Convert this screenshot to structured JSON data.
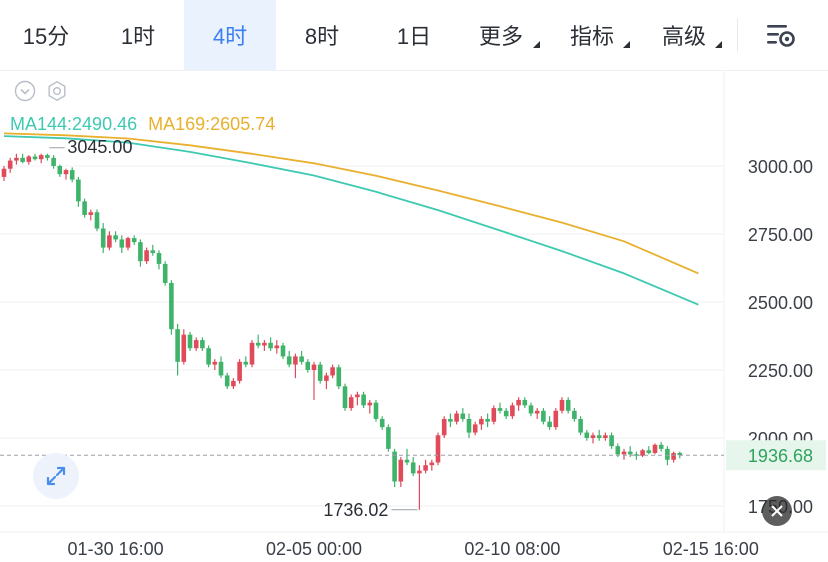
{
  "toolbar": {
    "tabs": [
      {
        "label": "15分",
        "caret": false,
        "active": false
      },
      {
        "label": "1时",
        "caret": false,
        "active": false
      },
      {
        "label": "4时",
        "caret": false,
        "active": true
      },
      {
        "label": "8时",
        "caret": false,
        "active": false
      },
      {
        "label": "1日",
        "caret": false,
        "active": false
      },
      {
        "label": "更多",
        "caret": true,
        "active": false
      },
      {
        "label": "指标",
        "caret": true,
        "active": false
      },
      {
        "label": "高级",
        "caret": true,
        "active": false
      }
    ],
    "settings_icon": "chart-settings-icon"
  },
  "indicators": {
    "ma144_label": "MA144:2490.46",
    "ma169_label": "MA169:2605.74",
    "collapse_icon": "chevron-down-circle-icon",
    "settings_icon": "gear-icon"
  },
  "colors": {
    "accent": "#3b7ff0",
    "up": "#e04b5c",
    "down": "#3fb36a",
    "ma144": "#3ec9b1",
    "ma169": "#e9b02d",
    "last_price_bg": "#e6f6ec",
    "last_price_text": "#2fa35c"
  },
  "chart_data": {
    "type": "candlestick",
    "interval": "4时",
    "y_axis": {
      "ticks": [
        "3000.00",
        "2750.00",
        "2500.00",
        "2250.00",
        "2000.00",
        "1750.00"
      ],
      "tick_values": [
        3000,
        2750,
        2500,
        2250,
        2000,
        1750
      ],
      "ylim": [
        1670,
        3200
      ]
    },
    "x_axis": {
      "ticks": [
        "01-30 16:00",
        "02-05 00:00",
        "02-10 08:00",
        "02-15 16:00"
      ],
      "tick_index": [
        18,
        50,
        82,
        114
      ]
    },
    "high_marker": {
      "label": "3045.00",
      "value": 3045.0,
      "index": 7
    },
    "low_marker": {
      "label": "1736.02",
      "value": 1736.02,
      "index": 67
    },
    "last_price": {
      "label": "1936.68",
      "value": 1936.68
    },
    "series": [
      {
        "name": "MA144",
        "index": [
          0,
          10,
          20,
          30,
          40,
          50,
          60,
          70,
          80,
          90,
          100,
          112
        ],
        "values": [
          3110,
          3102,
          3086,
          3052,
          3010,
          2965,
          2905,
          2838,
          2763,
          2687,
          2605,
          2490
        ]
      },
      {
        "name": "MA169",
        "index": [
          0,
          10,
          20,
          30,
          40,
          50,
          60,
          70,
          80,
          90,
          100,
          112
        ],
        "values": [
          3120,
          3113,
          3101,
          3076,
          3045,
          3010,
          2964,
          2910,
          2852,
          2792,
          2723,
          2605
        ]
      }
    ],
    "candles_ohlc": [
      [
        2960,
        3000,
        2945,
        2990
      ],
      [
        2990,
        3030,
        2975,
        3020
      ],
      [
        3020,
        3045,
        3005,
        3030
      ],
      [
        3030,
        3045,
        3010,
        3015
      ],
      [
        3015,
        3040,
        3005,
        3035
      ],
      [
        3035,
        3045,
        3020,
        3025
      ],
      [
        3025,
        3045,
        3010,
        3040
      ],
      [
        3040,
        3045,
        3020,
        3030
      ],
      [
        3030,
        3040,
        2990,
        3000
      ],
      [
        3000,
        3005,
        2960,
        2970
      ],
      [
        2970,
        2990,
        2950,
        2985
      ],
      [
        2985,
        2995,
        2940,
        2950
      ],
      [
        2950,
        2960,
        2850,
        2870
      ],
      [
        2870,
        2880,
        2810,
        2820
      ],
      [
        2820,
        2840,
        2800,
        2830
      ],
      [
        2830,
        2840,
        2760,
        2770
      ],
      [
        2770,
        2790,
        2680,
        2700
      ],
      [
        2700,
        2760,
        2690,
        2745
      ],
      [
        2745,
        2760,
        2720,
        2730
      ],
      [
        2730,
        2745,
        2680,
        2700
      ],
      [
        2700,
        2740,
        2690,
        2735
      ],
      [
        2735,
        2745,
        2710,
        2720
      ],
      [
        2720,
        2730,
        2630,
        2650
      ],
      [
        2650,
        2700,
        2640,
        2690
      ],
      [
        2690,
        2710,
        2670,
        2680
      ],
      [
        2680,
        2690,
        2620,
        2640
      ],
      [
        2640,
        2650,
        2560,
        2570
      ],
      [
        2570,
        2580,
        2380,
        2400
      ],
      [
        2400,
        2420,
        2230,
        2280
      ],
      [
        2280,
        2400,
        2270,
        2380
      ],
      [
        2380,
        2390,
        2320,
        2330
      ],
      [
        2330,
        2370,
        2320,
        2360
      ],
      [
        2360,
        2370,
        2320,
        2330
      ],
      [
        2330,
        2340,
        2260,
        2270
      ],
      [
        2270,
        2290,
        2250,
        2280
      ],
      [
        2280,
        2300,
        2220,
        2230
      ],
      [
        2230,
        2240,
        2180,
        2190
      ],
      [
        2190,
        2220,
        2180,
        2210
      ],
      [
        2210,
        2290,
        2200,
        2280
      ],
      [
        2280,
        2300,
        2260,
        2270
      ],
      [
        2270,
        2360,
        2260,
        2350
      ],
      [
        2350,
        2380,
        2330,
        2340
      ],
      [
        2340,
        2360,
        2320,
        2350
      ],
      [
        2350,
        2370,
        2320,
        2330
      ],
      [
        2330,
        2360,
        2310,
        2340
      ],
      [
        2340,
        2350,
        2290,
        2300
      ],
      [
        2300,
        2320,
        2260,
        2270
      ],
      [
        2270,
        2310,
        2220,
        2300
      ],
      [
        2300,
        2320,
        2270,
        2280
      ],
      [
        2280,
        2290,
        2240,
        2250
      ],
      [
        2250,
        2280,
        2140,
        2270
      ],
      [
        2270,
        2280,
        2200,
        2210
      ],
      [
        2210,
        2240,
        2180,
        2230
      ],
      [
        2230,
        2270,
        2220,
        2260
      ],
      [
        2260,
        2270,
        2180,
        2190
      ],
      [
        2190,
        2200,
        2100,
        2110
      ],
      [
        2110,
        2160,
        2100,
        2150
      ],
      [
        2150,
        2170,
        2120,
        2160
      ],
      [
        2160,
        2170,
        2110,
        2120
      ],
      [
        2120,
        2140,
        2090,
        2130
      ],
      [
        2130,
        2140,
        2060,
        2070
      ],
      [
        2070,
        2080,
        2030,
        2040
      ],
      [
        2040,
        2050,
        1950,
        1960
      ],
      [
        1950,
        1960,
        1820,
        1840
      ],
      [
        1840,
        1930,
        1820,
        1920
      ],
      [
        1920,
        1960,
        1900,
        1910
      ],
      [
        1910,
        1930,
        1860,
        1870
      ],
      [
        1870,
        1900,
        1736,
        1880
      ],
      [
        1880,
        1920,
        1870,
        1900
      ],
      [
        1900,
        1920,
        1880,
        1910
      ],
      [
        1910,
        2020,
        1900,
        2010
      ],
      [
        2010,
        2080,
        2000,
        2070
      ],
      [
        2070,
        2090,
        2040,
        2060
      ],
      [
        2060,
        2100,
        2050,
        2090
      ],
      [
        2090,
        2110,
        2060,
        2070
      ],
      [
        2070,
        2090,
        2000,
        2020
      ],
      [
        2020,
        2060,
        2010,
        2050
      ],
      [
        2050,
        2080,
        2030,
        2070
      ],
      [
        2070,
        2090,
        2040,
        2060
      ],
      [
        2060,
        2120,
        2050,
        2110
      ],
      [
        2110,
        2130,
        2090,
        2100
      ],
      [
        2100,
        2110,
        2070,
        2080
      ],
      [
        2080,
        2130,
        2070,
        2120
      ],
      [
        2120,
        2150,
        2100,
        2140
      ],
      [
        2140,
        2150,
        2110,
        2120
      ],
      [
        2120,
        2130,
        2080,
        2090
      ],
      [
        2090,
        2110,
        2070,
        2100
      ],
      [
        2100,
        2110,
        2050,
        2060
      ],
      [
        2060,
        2080,
        2030,
        2040
      ],
      [
        2040,
        2110,
        2030,
        2100
      ],
      [
        2100,
        2150,
        2090,
        2140
      ],
      [
        2140,
        2150,
        2090,
        2100
      ],
      [
        2100,
        2110,
        2060,
        2070
      ],
      [
        2070,
        2080,
        2010,
        2020
      ],
      [
        2020,
        2030,
        1990,
        2000
      ],
      [
        2000,
        2020,
        1980,
        2010
      ],
      [
        2010,
        2030,
        1990,
        2000
      ],
      [
        2000,
        2020,
        1990,
        2010
      ],
      [
        2010,
        2020,
        1960,
        1970
      ],
      [
        1970,
        1980,
        1930,
        1940
      ],
      [
        1940,
        1960,
        1920,
        1950
      ],
      [
        1950,
        1970,
        1930,
        1940
      ],
      [
        1940,
        1950,
        1920,
        1935
      ],
      [
        1935,
        1960,
        1930,
        1955
      ],
      [
        1955,
        1970,
        1940,
        1945
      ],
      [
        1945,
        1980,
        1940,
        1975
      ],
      [
        1975,
        1985,
        1950,
        1960
      ],
      [
        1960,
        1970,
        1900,
        1920
      ],
      [
        1920,
        1950,
        1910,
        1945
      ],
      [
        1945,
        1950,
        1925,
        1937
      ]
    ]
  }
}
